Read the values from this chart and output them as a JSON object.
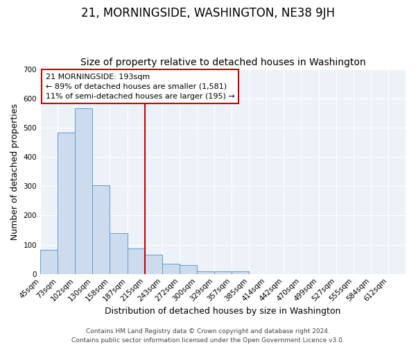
{
  "title": "21, MORNINGSIDE, WASHINGTON, NE38 9JH",
  "subtitle": "Size of property relative to detached houses in Washington",
  "xlabel": "Distribution of detached houses by size in Washington",
  "ylabel": "Number of detached properties",
  "bar_labels": [
    "45sqm",
    "73sqm",
    "102sqm",
    "130sqm",
    "158sqm",
    "187sqm",
    "215sqm",
    "243sqm",
    "272sqm",
    "300sqm",
    "329sqm",
    "357sqm",
    "385sqm",
    "414sqm",
    "442sqm",
    "470sqm",
    "499sqm",
    "527sqm",
    "555sqm",
    "584sqm",
    "612sqm"
  ],
  "bar_values": [
    82,
    483,
    567,
    303,
    140,
    87,
    65,
    36,
    30,
    10,
    8,
    10,
    0,
    0,
    0,
    0,
    0,
    0,
    0,
    0,
    0
  ],
  "bar_color": "#ccdcee",
  "bar_edgecolor": "#6699cc",
  "vline_x": 6.0,
  "vline_color": "#cc0000",
  "ylim": [
    0,
    700
  ],
  "yticks": [
    0,
    100,
    200,
    300,
    400,
    500,
    600,
    700
  ],
  "annotation_title": "21 MORNINGSIDE: 193sqm",
  "annotation_line1": "← 89% of detached houses are smaller (1,581)",
  "annotation_line2": "11% of semi-detached houses are larger (195) →",
  "annotation_box_color": "#ffffff",
  "annotation_box_edgecolor": "#cc0000",
  "footer_line1": "Contains HM Land Registry data © Crown copyright and database right 2024.",
  "footer_line2": "Contains public sector information licensed under the Open Government Licence v3.0.",
  "bg_color": "#edf2f9",
  "fig_bg_color": "#ffffff",
  "grid_color": "#ffffff",
  "title_fontsize": 12,
  "subtitle_fontsize": 10,
  "axis_label_fontsize": 9,
  "tick_fontsize": 7.5,
  "footer_fontsize": 6.5,
  "ann_fontsize": 8
}
